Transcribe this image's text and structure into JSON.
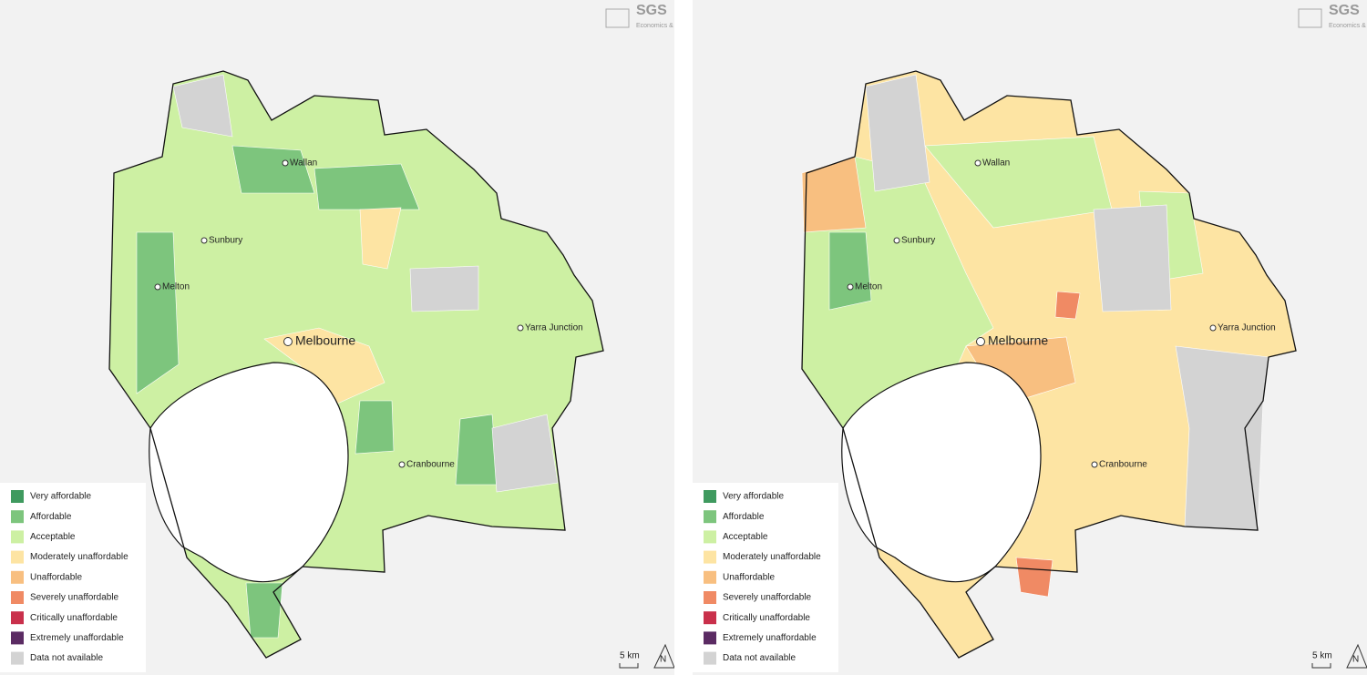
{
  "panels": [
    {
      "logo": {
        "name": "SGS",
        "tagline": "Economics & Planning"
      },
      "places": [
        "Wallan",
        "Sunbury",
        "Melton",
        "Melbourne",
        "Yarra Junction",
        "Cranbourne"
      ],
      "legend": [
        {
          "label": "Very affordable",
          "color": "#3f9a5f"
        },
        {
          "label": "Affordable",
          "color": "#7dc57d"
        },
        {
          "label": "Acceptable",
          "color": "#cdf0a3"
        },
        {
          "label": "Moderately unaffordable",
          "color": "#fde4a3"
        },
        {
          "label": "Unaffordable",
          "color": "#f8bf80"
        },
        {
          "label": "Severely unaffordable",
          "color": "#f08a64"
        },
        {
          "label": "Critically unaffordable",
          "color": "#c9304b"
        },
        {
          "label": "Extremely unaffordable",
          "color": "#5b2b63"
        },
        {
          "label": "Data not available",
          "color": "#d3d3d3"
        }
      ],
      "scale": "5 km",
      "north": "N"
    },
    {
      "logo": {
        "name": "SGS",
        "tagline": "Economics & Planning"
      },
      "places": [
        "Wallan",
        "Sunbury",
        "Melton",
        "Melbourne",
        "Yarra Junction",
        "Cranbourne"
      ],
      "legend": [
        {
          "label": "Very affordable",
          "color": "#3f9a5f"
        },
        {
          "label": "Affordable",
          "color": "#7dc57d"
        },
        {
          "label": "Acceptable",
          "color": "#cdf0a3"
        },
        {
          "label": "Moderately unaffordable",
          "color": "#fde4a3"
        },
        {
          "label": "Unaffordable",
          "color": "#f8bf80"
        },
        {
          "label": "Severely unaffordable",
          "color": "#f08a64"
        },
        {
          "label": "Critically unaffordable",
          "color": "#c9304b"
        },
        {
          "label": "Extremely unaffordable",
          "color": "#5b2b63"
        },
        {
          "label": "Data not available",
          "color": "#d3d3d3"
        }
      ],
      "scale": "5 km",
      "north": "N"
    }
  ]
}
